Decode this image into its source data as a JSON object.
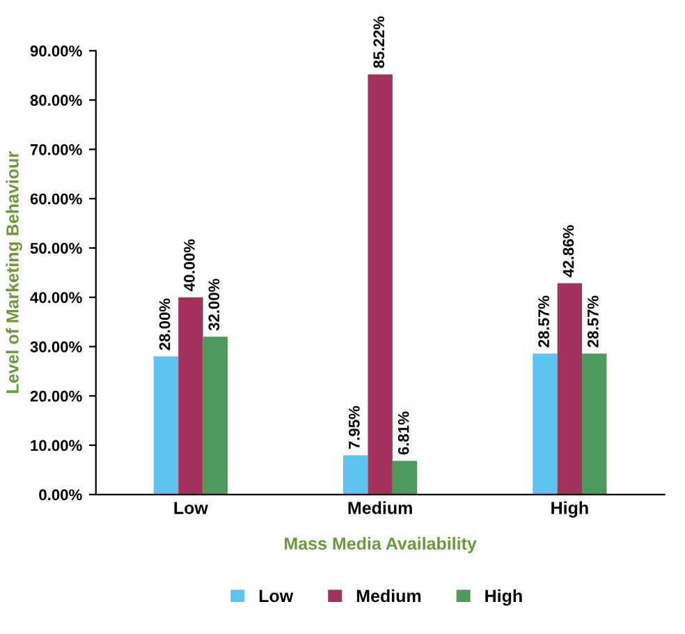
{
  "chart_data": {
    "type": "bar",
    "xlabel": "Mass Media Availability",
    "ylabel": "Level of Marketing Behaviour",
    "categories": [
      "Low",
      "Medium",
      "High"
    ],
    "series": [
      {
        "name": "Low",
        "color": "#5cc3f0",
        "values": [
          28.0,
          7.95,
          28.57
        ],
        "value_labels": [
          "28.00%",
          "7.95%",
          "28.57%"
        ]
      },
      {
        "name": "Medium",
        "color": "#a3325f",
        "values": [
          40.0,
          85.22,
          42.86
        ],
        "value_labels": [
          "40.00%",
          "85.22%",
          "42.86%"
        ]
      },
      {
        "name": "High",
        "color": "#4e9a5c",
        "values": [
          32.0,
          6.81,
          28.57
        ],
        "value_labels": [
          "32.00%",
          "6.81%",
          "28.57%"
        ]
      }
    ],
    "ylim": [
      0,
      90
    ],
    "yticks": [
      {
        "value": 0,
        "label": "0.00%"
      },
      {
        "value": 10,
        "label": "10.00%"
      },
      {
        "value": 20,
        "label": "20.00%"
      },
      {
        "value": 30,
        "label": "30.00%"
      },
      {
        "value": 40,
        "label": "40.00%"
      },
      {
        "value": 50,
        "label": "50.00%"
      },
      {
        "value": 60,
        "label": "60.00%"
      },
      {
        "value": 70,
        "label": "70.00%"
      },
      {
        "value": 80,
        "label": "80.00%"
      },
      {
        "value": 90,
        "label": "90.00%"
      }
    ],
    "grid": false,
    "legend": "bottom"
  }
}
